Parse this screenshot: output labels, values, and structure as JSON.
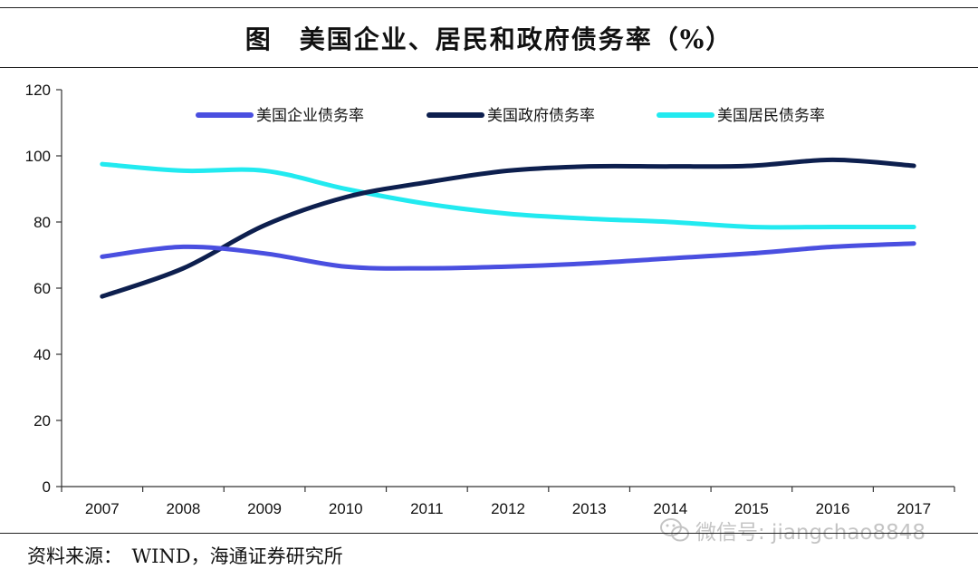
{
  "title": "图　美国企业、居民和政府债务率（%）",
  "source": "资料来源：　WIND，海通证券研究所",
  "watermark": "微信号: jiangchao8848",
  "chart_data": {
    "type": "line",
    "x": [
      "2007",
      "2008",
      "2009",
      "2010",
      "2011",
      "2012",
      "2013",
      "2014",
      "2015",
      "2016",
      "2017"
    ],
    "ylim": [
      0,
      120
    ],
    "yticks": [
      "0",
      "20",
      "40",
      "60",
      "80",
      "100",
      "120"
    ],
    "grid": false,
    "legend_position": "top",
    "series": [
      {
        "name": "美国企业债务率",
        "color": "#4a4fe0",
        "values": [
          69.5,
          72.5,
          70.5,
          66.5,
          66.0,
          66.5,
          67.5,
          69.0,
          70.5,
          72.5,
          73.5
        ]
      },
      {
        "name": "美国政府债务率",
        "color": "#0d1f4e",
        "values": [
          57.5,
          66.0,
          79.0,
          87.5,
          92.0,
          95.5,
          96.8,
          96.8,
          97.0,
          98.8,
          97.0
        ]
      },
      {
        "name": "美国居民债务率",
        "color": "#22eaf0",
        "values": [
          97.5,
          95.5,
          95.5,
          90.0,
          85.5,
          82.5,
          81.0,
          80.0,
          78.5,
          78.5,
          78.5
        ]
      }
    ]
  }
}
